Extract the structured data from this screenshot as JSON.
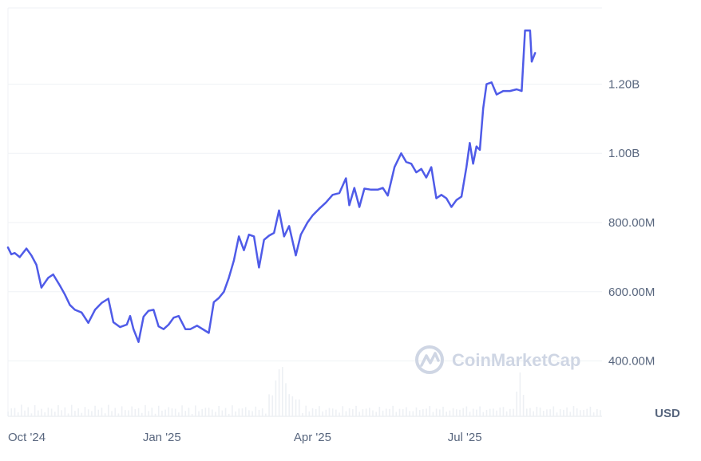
{
  "chart_data": {
    "type": "line",
    "currency": "USD",
    "watermark": "CoinMarketCap",
    "y_ticks": [
      {
        "value": 400000000,
        "label": "400.00M"
      },
      {
        "value": 600000000,
        "label": "600.00M"
      },
      {
        "value": 800000000,
        "label": "800.00M"
      },
      {
        "value": 1000000000,
        "label": "1.00B"
      },
      {
        "value": 1200000000,
        "label": "1.20B"
      }
    ],
    "x_ticks": [
      {
        "date": "2024-10-01",
        "label": "Oct '24"
      },
      {
        "date": "2025-01-01",
        "label": "Jan '25"
      },
      {
        "date": "2025-04-01",
        "label": "Apr '25"
      },
      {
        "date": "2025-07-01",
        "label": "Jul '25"
      }
    ],
    "x_range": [
      "2024-10-01",
      "2025-09-21"
    ],
    "ylim": [
      240000000,
      1420000000
    ],
    "grid": true,
    "series": [
      {
        "color": "#4f5be8",
        "points": [
          [
            "2024-10-01",
            728000000
          ],
          [
            "2024-10-03",
            708000000
          ],
          [
            "2024-10-05",
            712000000
          ],
          [
            "2024-10-08",
            700000000
          ],
          [
            "2024-10-12",
            725000000
          ],
          [
            "2024-10-15",
            705000000
          ],
          [
            "2024-10-18",
            678000000
          ],
          [
            "2024-10-21",
            612000000
          ],
          [
            "2024-10-25",
            640000000
          ],
          [
            "2024-10-28",
            650000000
          ],
          [
            "2024-11-01",
            618000000
          ],
          [
            "2024-11-04",
            592000000
          ],
          [
            "2024-11-07",
            562000000
          ],
          [
            "2024-11-10",
            548000000
          ],
          [
            "2024-11-14",
            540000000
          ],
          [
            "2024-11-18",
            510000000
          ],
          [
            "2024-11-22",
            548000000
          ],
          [
            "2024-11-26",
            568000000
          ],
          [
            "2024-11-30",
            580000000
          ],
          [
            "2024-12-03",
            512000000
          ],
          [
            "2024-12-07",
            498000000
          ],
          [
            "2024-12-11",
            505000000
          ],
          [
            "2024-12-13",
            530000000
          ],
          [
            "2024-12-15",
            492000000
          ],
          [
            "2024-12-18",
            455000000
          ],
          [
            "2024-12-21",
            528000000
          ],
          [
            "2024-12-24",
            545000000
          ],
          [
            "2024-12-27",
            548000000
          ],
          [
            "2024-12-30",
            500000000
          ],
          [
            "2025-01-02",
            492000000
          ],
          [
            "2025-01-05",
            505000000
          ],
          [
            "2025-01-08",
            525000000
          ],
          [
            "2025-01-11",
            530000000
          ],
          [
            "2025-01-15",
            492000000
          ],
          [
            "2025-01-18",
            492000000
          ],
          [
            "2025-01-22",
            502000000
          ],
          [
            "2025-01-26",
            490000000
          ],
          [
            "2025-01-29",
            481000000
          ],
          [
            "2025-02-01",
            570000000
          ],
          [
            "2025-02-04",
            582000000
          ],
          [
            "2025-02-07",
            600000000
          ],
          [
            "2025-02-10",
            640000000
          ],
          [
            "2025-02-13",
            690000000
          ],
          [
            "2025-02-16",
            760000000
          ],
          [
            "2025-02-19",
            720000000
          ],
          [
            "2025-02-22",
            765000000
          ],
          [
            "2025-02-25",
            760000000
          ],
          [
            "2025-02-28",
            670000000
          ],
          [
            "2025-03-03",
            750000000
          ],
          [
            "2025-03-06",
            762000000
          ],
          [
            "2025-03-09",
            770000000
          ],
          [
            "2025-03-12",
            835000000
          ],
          [
            "2025-03-15",
            760000000
          ],
          [
            "2025-03-18",
            790000000
          ],
          [
            "2025-03-22",
            705000000
          ],
          [
            "2025-03-25",
            765000000
          ],
          [
            "2025-03-29",
            800000000
          ],
          [
            "2025-04-01",
            820000000
          ],
          [
            "2025-04-05",
            840000000
          ],
          [
            "2025-04-09",
            858000000
          ],
          [
            "2025-04-13",
            880000000
          ],
          [
            "2025-04-17",
            885000000
          ],
          [
            "2025-04-21",
            928000000
          ],
          [
            "2025-04-23",
            850000000
          ],
          [
            "2025-04-26",
            900000000
          ],
          [
            "2025-04-29",
            845000000
          ],
          [
            "2025-05-02",
            898000000
          ],
          [
            "2025-05-06",
            895000000
          ],
          [
            "2025-05-10",
            895000000
          ],
          [
            "2025-05-13",
            900000000
          ],
          [
            "2025-05-16",
            878000000
          ],
          [
            "2025-05-20",
            960000000
          ],
          [
            "2025-05-24",
            1000000000
          ],
          [
            "2025-05-27",
            975000000
          ],
          [
            "2025-05-30",
            970000000
          ],
          [
            "2025-06-02",
            945000000
          ],
          [
            "2025-06-05",
            955000000
          ],
          [
            "2025-06-08",
            930000000
          ],
          [
            "2025-06-11",
            960000000
          ],
          [
            "2025-06-14",
            870000000
          ],
          [
            "2025-06-17",
            880000000
          ],
          [
            "2025-06-20",
            870000000
          ],
          [
            "2025-06-23",
            845000000
          ],
          [
            "2025-06-26",
            865000000
          ],
          [
            "2025-06-29",
            875000000
          ],
          [
            "2025-07-02",
            960000000
          ],
          [
            "2025-07-04",
            1030000000
          ],
          [
            "2025-07-06",
            970000000
          ],
          [
            "2025-07-08",
            1020000000
          ],
          [
            "2025-07-10",
            1010000000
          ],
          [
            "2025-07-12",
            1130000000
          ],
          [
            "2025-07-14",
            1200000000
          ],
          [
            "2025-07-17",
            1205000000
          ],
          [
            "2025-07-20",
            1170000000
          ],
          [
            "2025-07-24",
            1180000000
          ],
          [
            "2025-07-28",
            1180000000
          ],
          [
            "2025-08-01",
            1185000000
          ],
          [
            "2025-08-04",
            1180000000
          ],
          [
            "2025-08-06",
            1355000000
          ],
          [
            "2025-08-09",
            1355000000
          ],
          [
            "2025-08-10",
            1265000000
          ],
          [
            "2025-08-12",
            1290000000
          ]
        ]
      }
    ]
  }
}
